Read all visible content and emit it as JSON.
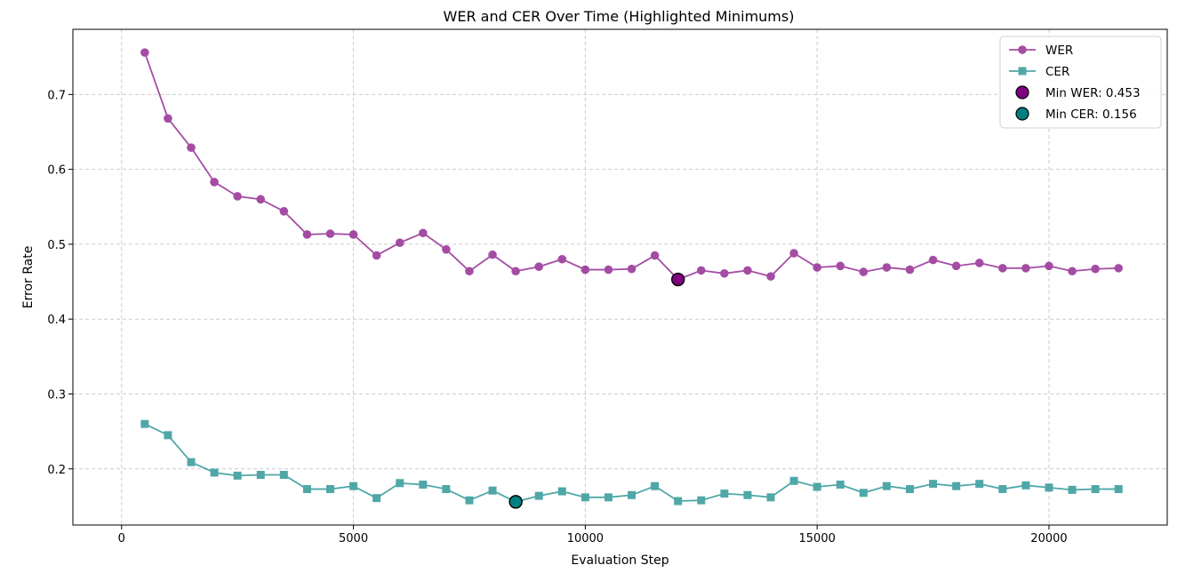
{
  "chart_data": {
    "type": "line",
    "title": "WER and CER Over Time (Highlighted Minimums)",
    "xlabel": "Evaluation Step",
    "ylabel": "Error Rate",
    "xlim": [
      -1050,
      22550
    ],
    "ylim": [
      0.125,
      0.787
    ],
    "xticks": [
      0,
      5000,
      10000,
      15000,
      20000
    ],
    "xtick_labels": [
      "0",
      "5000",
      "10000",
      "15000",
      "20000"
    ],
    "yticks": [
      0.2,
      0.3,
      0.4,
      0.5,
      0.6,
      0.7
    ],
    "ytick_labels": [
      "0.2",
      "0.3",
      "0.4",
      "0.5",
      "0.6",
      "0.7"
    ],
    "grid": true,
    "legend_position": "top-right",
    "x": [
      500,
      1000,
      1500,
      2000,
      2500,
      3000,
      3500,
      4000,
      4500,
      5000,
      5500,
      6000,
      6500,
      7000,
      7500,
      8000,
      8500,
      9000,
      9500,
      10000,
      10500,
      11000,
      11500,
      12000,
      12500,
      13000,
      13500,
      14000,
      14500,
      15000,
      15500,
      16000,
      16500,
      17000,
      17500,
      18000,
      18500,
      19000,
      19500,
      20000,
      20500,
      21000,
      21500
    ],
    "series": [
      {
        "name": "WER",
        "color": "#8b1a8b",
        "marker": "circle",
        "values": [
          0.756,
          0.668,
          0.629,
          0.583,
          0.564,
          0.56,
          0.544,
          0.513,
          0.514,
          0.513,
          0.485,
          0.502,
          0.515,
          0.493,
          0.464,
          0.486,
          0.464,
          0.47,
          0.48,
          0.466,
          0.466,
          0.467,
          0.485,
          0.453,
          0.465,
          0.461,
          0.465,
          0.457,
          0.488,
          0.469,
          0.471,
          0.463,
          0.469,
          0.466,
          0.479,
          0.471,
          0.475,
          0.468,
          0.468,
          0.471,
          0.464,
          0.467,
          0.468
        ]
      },
      {
        "name": "CER",
        "color": "#1f8f8f",
        "marker": "square",
        "values": [
          0.26,
          0.245,
          0.209,
          0.195,
          0.191,
          0.192,
          0.192,
          0.173,
          0.173,
          0.177,
          0.161,
          0.181,
          0.179,
          0.173,
          0.158,
          0.171,
          0.156,
          0.164,
          0.17,
          0.162,
          0.162,
          0.165,
          0.177,
          0.157,
          0.158,
          0.167,
          0.165,
          0.162,
          0.184,
          0.176,
          0.179,
          0.168,
          0.177,
          0.173,
          0.18,
          0.177,
          0.18,
          0.173,
          0.178,
          0.175,
          0.172,
          0.173,
          0.173
        ]
      }
    ],
    "highlights": [
      {
        "name": "Min WER",
        "label": "Min WER: 0.453",
        "x": 12000,
        "y": 0.453,
        "color": "#800080"
      },
      {
        "name": "Min CER",
        "label": "Min CER: 0.156",
        "x": 8500,
        "y": 0.156,
        "color": "#008080"
      }
    ]
  }
}
